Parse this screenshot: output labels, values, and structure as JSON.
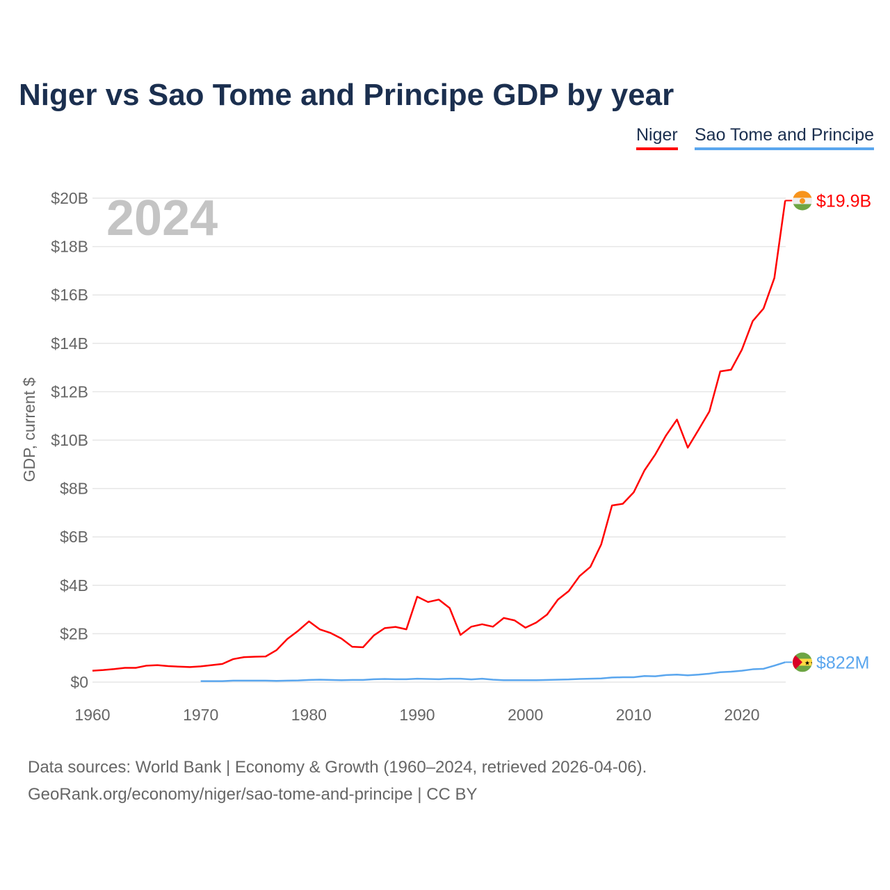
{
  "title": "Niger vs Sao Tome and Principe GDP by year",
  "source_lines": [
    "Data sources: World Bank | Economy & Growth (1960–2024, retrieved 2026-04-06).",
    "GeoRank.org/economy/niger/sao-tome-and-principe | CC BY"
  ],
  "chart_data": {
    "type": "line",
    "title": "Niger vs Sao Tome and Principe GDP by year",
    "ylabel": "GDP, current $",
    "xlabel": "",
    "year_label": "2024",
    "xlim": [
      1960,
      2024
    ],
    "ylim": [
      0,
      20
    ],
    "x_ticks": [
      "1960",
      "1970",
      "1980",
      "1990",
      "2000",
      "2010",
      "2020"
    ],
    "y_ticks": [
      "$0",
      "$2B",
      "$4B",
      "$6B",
      "$8B",
      "$10B",
      "$12B",
      "$14B",
      "$16B",
      "$18B",
      "$20B"
    ],
    "grid": true,
    "legend_placement": "top-right",
    "series": [
      {
        "name": "Niger",
        "color": "#ff0000",
        "start_year": 1960,
        "end_label": "$19.9B",
        "flag": "niger-flag",
        "values_billion_usd": [
          0.47,
          0.5,
          0.54,
          0.59,
          0.59,
          0.68,
          0.7,
          0.66,
          0.64,
          0.62,
          0.65,
          0.7,
          0.75,
          0.95,
          1.03,
          1.05,
          1.06,
          1.32,
          1.78,
          2.12,
          2.51,
          2.18,
          2.03,
          1.8,
          1.46,
          1.44,
          1.93,
          2.23,
          2.28,
          2.18,
          3.53,
          3.31,
          3.41,
          3.06,
          1.95,
          2.29,
          2.39,
          2.29,
          2.65,
          2.55,
          2.25,
          2.46,
          2.79,
          3.41,
          3.76,
          4.38,
          4.76,
          5.69,
          7.3,
          7.37,
          7.84,
          8.75,
          9.41,
          10.2,
          10.85,
          9.69,
          10.43,
          11.19,
          12.84,
          12.91,
          13.74,
          14.92,
          15.44,
          16.7,
          19.9
        ]
      },
      {
        "name": "Sao Tome and Principe",
        "color": "#5aa6ee",
        "start_year": 1970,
        "end_label": "$822M",
        "flag": "sao-tome-flag",
        "values_billion_usd": [
          0.04,
          0.04,
          0.04,
          0.06,
          0.06,
          0.06,
          0.06,
          0.05,
          0.06,
          0.07,
          0.09,
          0.1,
          0.09,
          0.08,
          0.09,
          0.09,
          0.12,
          0.13,
          0.12,
          0.12,
          0.14,
          0.13,
          0.12,
          0.14,
          0.14,
          0.11,
          0.14,
          0.1,
          0.08,
          0.08,
          0.08,
          0.08,
          0.09,
          0.1,
          0.11,
          0.13,
          0.14,
          0.15,
          0.19,
          0.2,
          0.2,
          0.25,
          0.24,
          0.29,
          0.31,
          0.28,
          0.31,
          0.35,
          0.41,
          0.43,
          0.47,
          0.53,
          0.55,
          0.68,
          0.822
        ]
      }
    ]
  }
}
